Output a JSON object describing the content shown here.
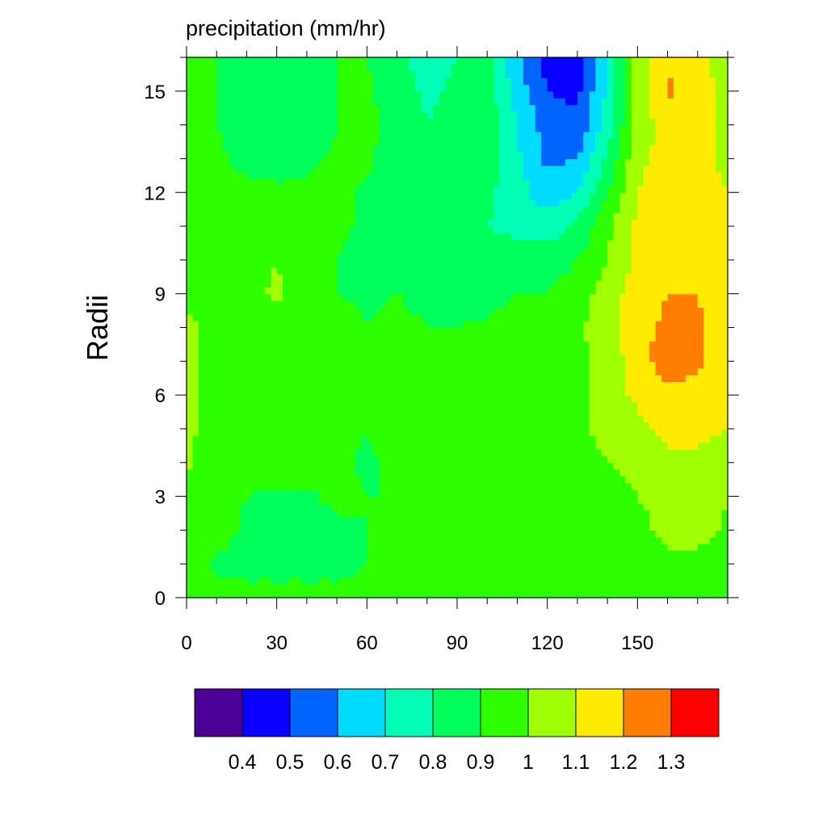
{
  "chart_data": {
    "type": "heatmap",
    "title": "precipitation (mm/hr)",
    "xlabel": "",
    "ylabel": "Radii",
    "xlim": [
      0,
      180
    ],
    "ylim": [
      0,
      16
    ],
    "x_ticks": [
      0,
      30,
      60,
      90,
      120,
      150
    ],
    "y_ticks": [
      0,
      3,
      6,
      9,
      12,
      15
    ],
    "x_tick_labels": [
      "0",
      "30",
      "60",
      "90",
      "120",
      "150"
    ],
    "y_tick_labels": [
      "0",
      "3",
      "6",
      "9",
      "12",
      "15"
    ],
    "colorbar": {
      "placement": "bottom",
      "levels": [
        0.4,
        0.5,
        0.6,
        0.7,
        0.8,
        0.9,
        1,
        1.1,
        1.2,
        1.3
      ],
      "level_labels": [
        "0.4",
        "0.5",
        "0.6",
        "0.7",
        "0.8",
        "0.9",
        "1",
        "1.1",
        "1.2",
        "1.3"
      ],
      "colors": [
        "#4B0095",
        "#0A00FF",
        "#0064FF",
        "#00DCFF",
        "#00FFB4",
        "#00FF5A",
        "#2DFF00",
        "#A0FF00",
        "#FFEB00",
        "#FF7D00",
        "#FF0000"
      ]
    },
    "x": [
      0,
      10,
      20,
      30,
      40,
      50,
      60,
      70,
      80,
      90,
      100,
      110,
      120,
      130,
      140,
      150,
      160,
      170,
      180
    ],
    "y": [
      0,
      1,
      2,
      3,
      4,
      5,
      6,
      7,
      8,
      9,
      10,
      11,
      12,
      13,
      14,
      15,
      16
    ],
    "z": [
      [
        0.95,
        0.95,
        0.95,
        0.95,
        0.95,
        0.95,
        0.95,
        0.95,
        0.95,
        0.95,
        0.95,
        0.95,
        0.95,
        0.95,
        0.95,
        0.95,
        0.95,
        0.95,
        0.95
      ],
      [
        0.98,
        0.88,
        0.85,
        0.85,
        0.85,
        0.85,
        0.9,
        0.95,
        0.95,
        0.95,
        0.95,
        0.95,
        0.95,
        0.95,
        0.95,
        0.95,
        0.95,
        0.95,
        0.95
      ],
      [
        0.98,
        0.95,
        0.88,
        0.85,
        0.85,
        0.87,
        0.9,
        0.92,
        0.94,
        0.95,
        0.95,
        0.95,
        0.95,
        0.95,
        0.95,
        0.95,
        1.05,
        1.05,
        0.98
      ],
      [
        0.98,
        0.93,
        0.9,
        0.88,
        0.88,
        0.93,
        0.9,
        0.9,
        0.93,
        0.95,
        0.95,
        0.95,
        0.95,
        0.95,
        0.95,
        1.0,
        1.06,
        1.06,
        1.0
      ],
      [
        1.02,
        0.9,
        0.92,
        0.95,
        0.95,
        0.93,
        0.88,
        0.94,
        0.94,
        0.95,
        0.95,
        0.95,
        0.95,
        0.95,
        1.0,
        1.04,
        1.08,
        1.08,
        1.05
      ],
      [
        1.05,
        0.9,
        0.9,
        0.92,
        0.95,
        0.93,
        0.9,
        0.96,
        0.94,
        0.95,
        0.95,
        0.93,
        0.95,
        0.97,
        1.04,
        1.07,
        1.12,
        1.12,
        1.1
      ],
      [
        1.03,
        0.93,
        0.92,
        0.93,
        0.95,
        0.95,
        0.9,
        0.94,
        0.92,
        0.95,
        0.95,
        0.93,
        0.95,
        0.97,
        1.05,
        1.12,
        1.18,
        1.16,
        1.12
      ],
      [
        1.03,
        0.95,
        0.94,
        0.93,
        0.93,
        0.95,
        0.9,
        0.93,
        0.92,
        0.9,
        0.95,
        0.93,
        0.95,
        0.97,
        1.03,
        1.16,
        1.25,
        1.22,
        1.15
      ],
      [
        1.03,
        0.95,
        0.94,
        0.96,
        0.93,
        0.95,
        0.9,
        0.94,
        0.9,
        0.9,
        0.92,
        0.95,
        0.95,
        0.98,
        1.07,
        1.17,
        1.22,
        1.21,
        1.17
      ],
      [
        0.98,
        0.9,
        0.96,
        1.02,
        0.95,
        0.9,
        0.88,
        0.9,
        0.86,
        0.84,
        0.86,
        0.9,
        0.9,
        0.95,
        1.05,
        1.15,
        1.2,
        1.2,
        1.15
      ],
      [
        0.95,
        0.9,
        0.96,
        1.0,
        0.93,
        0.9,
        0.86,
        0.84,
        0.83,
        0.85,
        0.82,
        0.84,
        0.85,
        0.9,
        1.0,
        1.13,
        1.18,
        1.18,
        1.12
      ],
      [
        0.95,
        0.92,
        0.95,
        0.95,
        0.92,
        0.92,
        0.88,
        0.84,
        0.82,
        0.86,
        0.8,
        0.78,
        0.75,
        0.82,
        0.98,
        1.12,
        1.18,
        1.16,
        1.12
      ],
      [
        0.95,
        0.92,
        0.93,
        0.92,
        0.92,
        0.92,
        0.88,
        0.85,
        0.84,
        0.88,
        0.82,
        0.74,
        0.64,
        0.7,
        0.9,
        1.1,
        1.15,
        1.13,
        1.1
      ],
      [
        0.95,
        0.92,
        0.87,
        0.85,
        0.88,
        0.92,
        0.92,
        0.85,
        0.85,
        0.9,
        0.85,
        0.72,
        0.58,
        0.6,
        0.82,
        1.08,
        1.13,
        1.12,
        1.08
      ],
      [
        0.95,
        0.9,
        0.85,
        0.8,
        0.82,
        0.9,
        0.92,
        0.86,
        0.8,
        0.86,
        0.86,
        0.7,
        0.55,
        0.52,
        0.75,
        1.05,
        1.13,
        1.14,
        1.08
      ],
      [
        0.95,
        0.9,
        0.84,
        0.8,
        0.83,
        0.9,
        0.92,
        0.85,
        0.78,
        0.82,
        0.85,
        0.66,
        0.5,
        0.48,
        0.72,
        1.05,
        1.22,
        1.14,
        1.08
      ],
      [
        0.95,
        0.9,
        0.84,
        0.82,
        0.85,
        0.9,
        0.9,
        0.82,
        0.76,
        0.8,
        0.82,
        0.62,
        0.45,
        0.42,
        0.7,
        1.05,
        1.18,
        1.12,
        1.05
      ]
    ]
  }
}
